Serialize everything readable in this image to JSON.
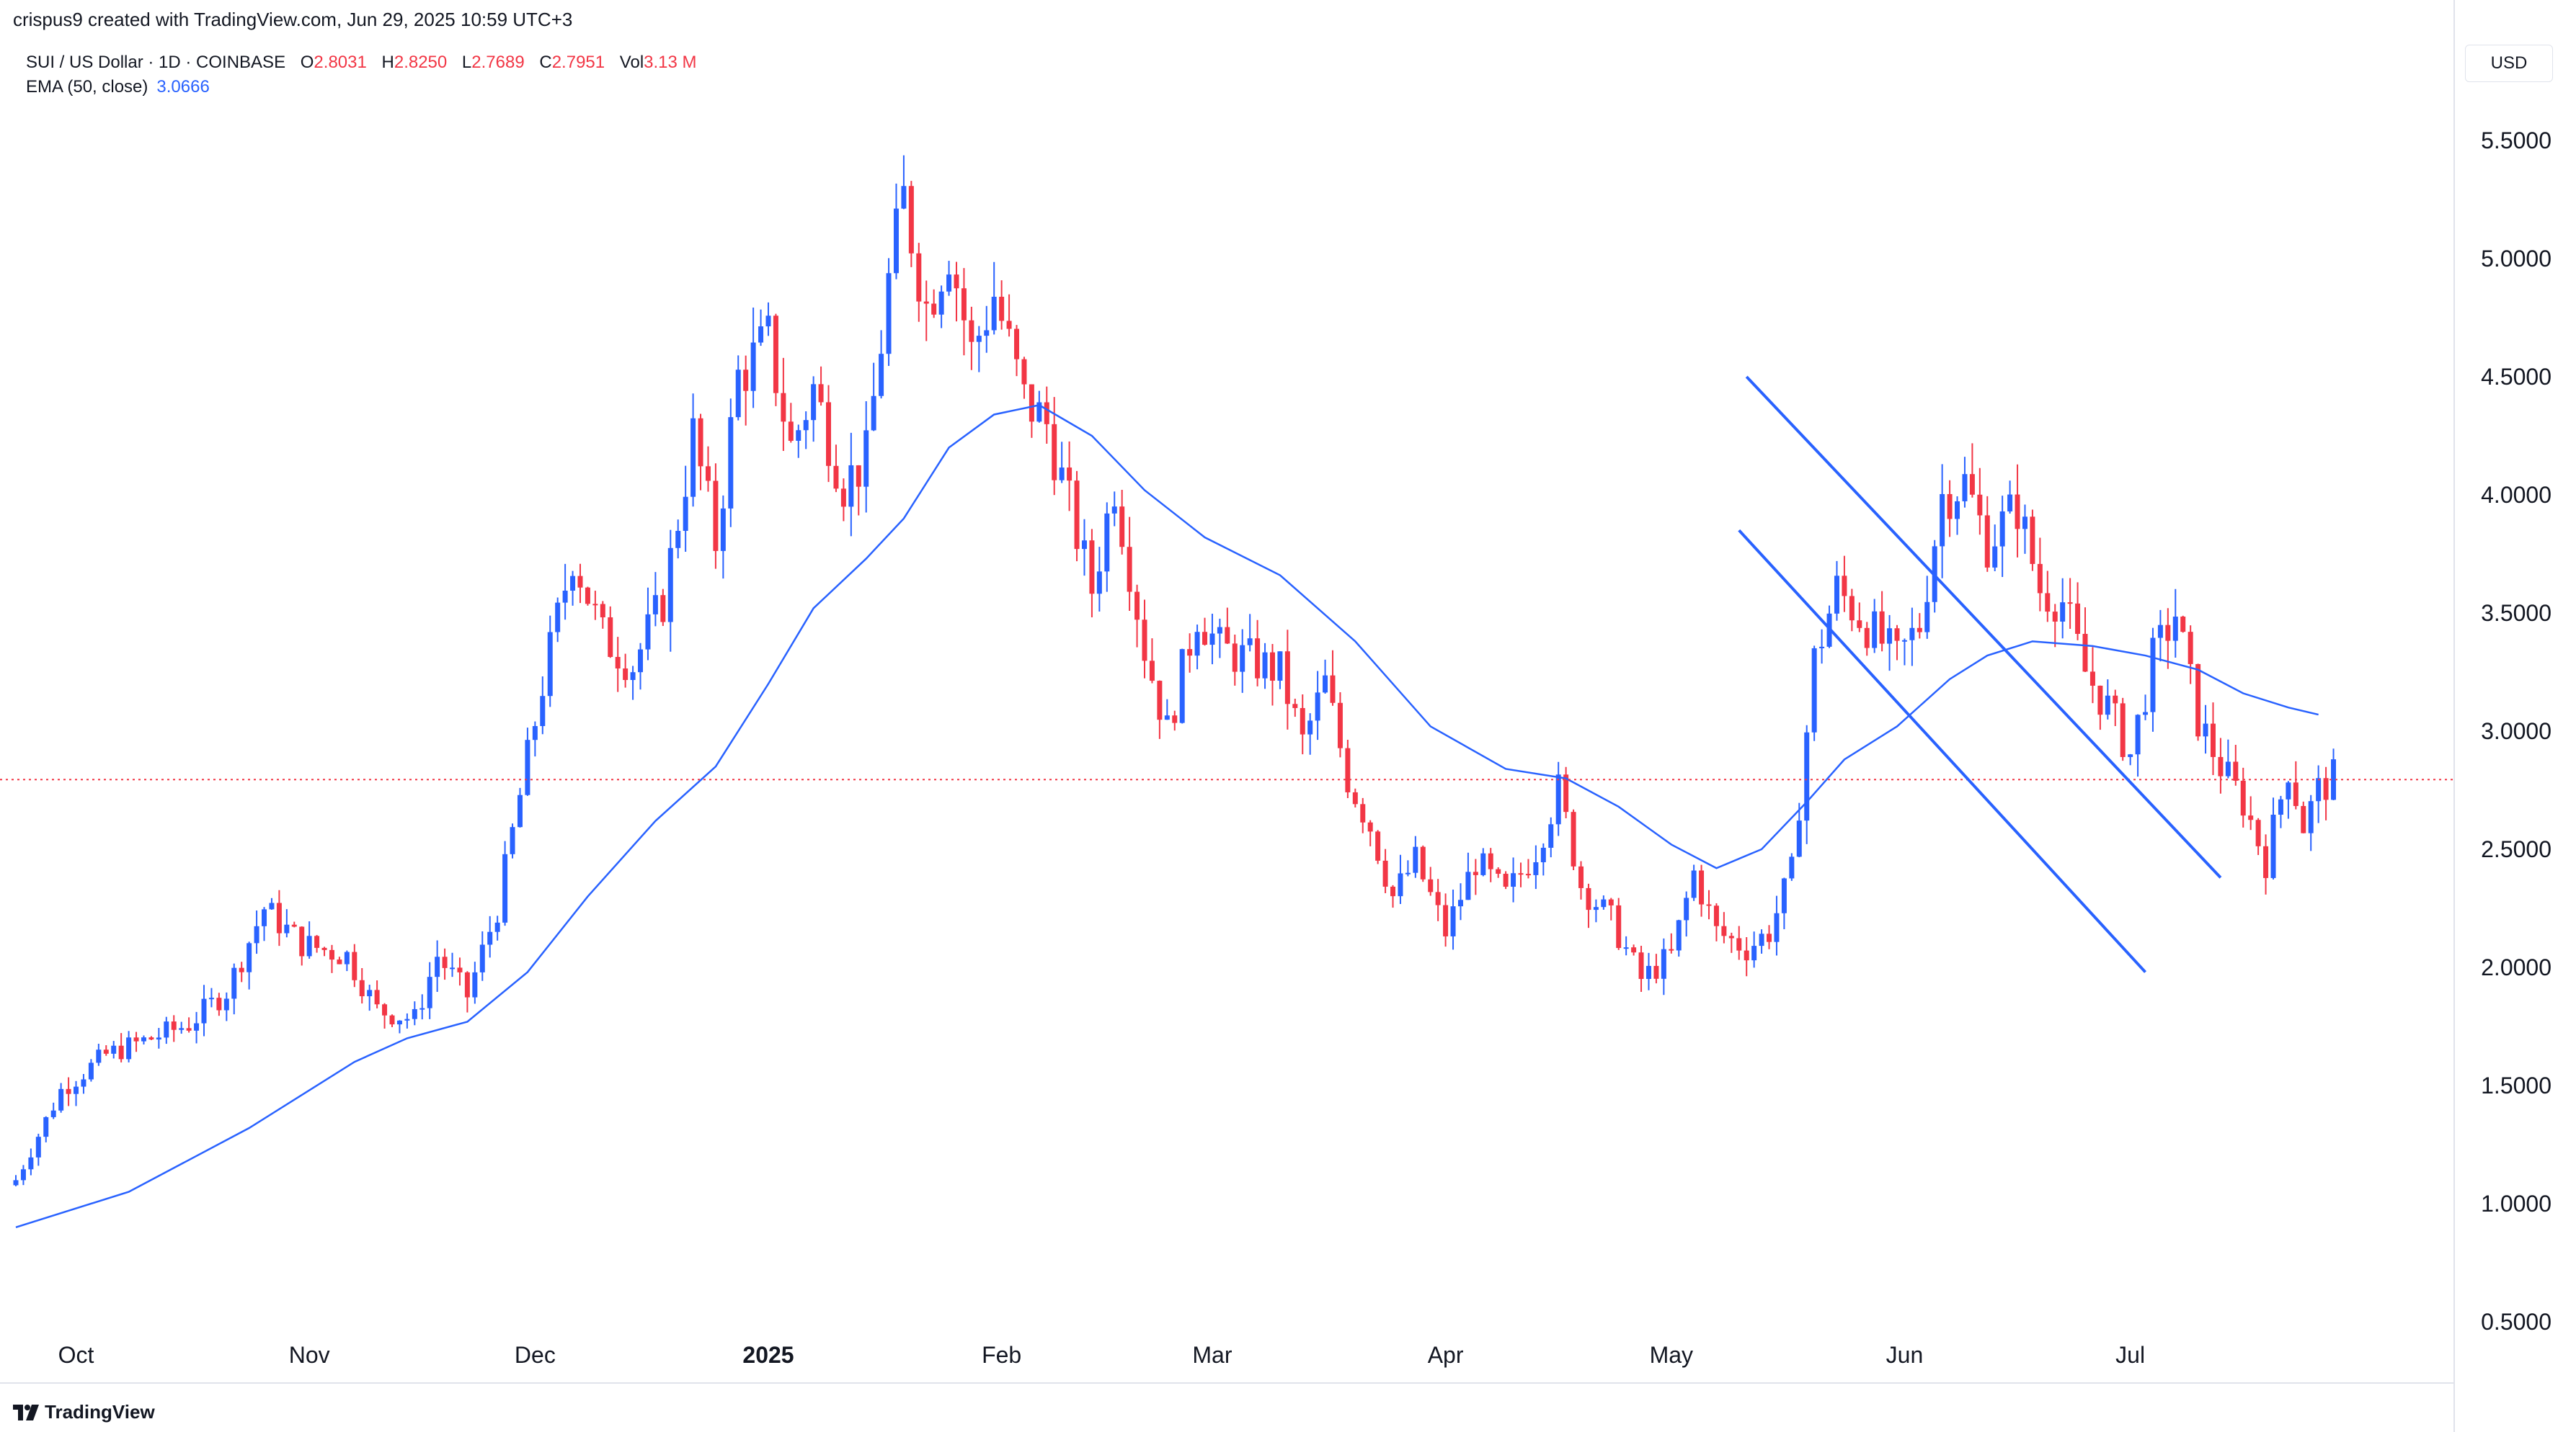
{
  "header": {
    "created_by": "crispus9 created with TradingView.com, Jun 29, 2025 10:59 UTC+3"
  },
  "legend": {
    "symbol": "SUI / US Dollar · 1D · COINBASE",
    "open_label": "O",
    "open": "2.8031",
    "high_label": "H",
    "high": "2.8250",
    "low_label": "L",
    "low": "2.7689",
    "close_label": "C",
    "close": "2.7951",
    "vol_label": "Vol",
    "vol": "3.13 M",
    "ema_label": "EMA (50, close)",
    "ema_value": "3.0666"
  },
  "currency_button": "USD",
  "footer": {
    "brand": "TradingView"
  },
  "colors": {
    "up": "#2962ff",
    "down": "#f23645",
    "ema": "#2962ff",
    "channel": "#2962ff",
    "last_price_line": "#f23645"
  },
  "chart_data": {
    "type": "candlestick",
    "title": "SUI / US Dollar · 1D · COINBASE",
    "y_axis": {
      "ticks": [
        "5.5000",
        "5.0000",
        "4.5000",
        "4.0000",
        "3.5000",
        "3.0000",
        "2.5000",
        "2.0000",
        "1.5000",
        "1.0000",
        "0.5000"
      ],
      "range": [
        0.45,
        5.85
      ]
    },
    "x_axis": {
      "labels": [
        "Oct",
        "Nov",
        "Dec",
        "2025",
        "Feb",
        "Mar",
        "Apr",
        "May",
        "Jun",
        "Jul"
      ],
      "bold": "2025"
    },
    "last_price": 2.7951,
    "ema50_points": [
      [
        0,
        0.9
      ],
      [
        15,
        1.05
      ],
      [
        31,
        1.32
      ],
      [
        45,
        1.6
      ],
      [
        52,
        1.7
      ],
      [
        60,
        1.77
      ],
      [
        68,
        1.98
      ],
      [
        76,
        2.3
      ],
      [
        85,
        2.62
      ],
      [
        93,
        2.85
      ],
      [
        100,
        3.2
      ],
      [
        106,
        3.52
      ],
      [
        113,
        3.73
      ],
      [
        118,
        3.9
      ],
      [
        124,
        4.2
      ],
      [
        130,
        4.34
      ],
      [
        136,
        4.38
      ],
      [
        143,
        4.25
      ],
      [
        150,
        4.02
      ],
      [
        158,
        3.82
      ],
      [
        168,
        3.66
      ],
      [
        178,
        3.38
      ],
      [
        188,
        3.02
      ],
      [
        198,
        2.84
      ],
      [
        206,
        2.8
      ],
      [
        213,
        2.68
      ],
      [
        220,
        2.52
      ],
      [
        226,
        2.42
      ],
      [
        232,
        2.5
      ],
      [
        238,
        2.7
      ],
      [
        243,
        2.88
      ],
      [
        250,
        3.02
      ],
      [
        257,
        3.22
      ],
      [
        262,
        3.32
      ],
      [
        268,
        3.38
      ],
      [
        276,
        3.36
      ],
      [
        283,
        3.32
      ],
      [
        290,
        3.26
      ],
      [
        296,
        3.16
      ],
      [
        302,
        3.1
      ],
      [
        306,
        3.07
      ]
    ],
    "candle_anchors": [
      [
        0,
        1.1
      ],
      [
        6,
        1.48
      ],
      [
        12,
        1.63
      ],
      [
        18,
        1.7
      ],
      [
        23,
        1.76
      ],
      [
        28,
        1.9
      ],
      [
        33,
        2.25
      ],
      [
        38,
        2.1
      ],
      [
        44,
        2.05
      ],
      [
        48,
        1.82
      ],
      [
        53,
        1.78
      ],
      [
        56,
        2.05
      ],
      [
        60,
        1.88
      ],
      [
        64,
        2.25
      ],
      [
        70,
        3.2
      ],
      [
        74,
        3.75
      ],
      [
        78,
        3.4
      ],
      [
        82,
        3.28
      ],
      [
        86,
        3.55
      ],
      [
        90,
        4.25
      ],
      [
        93,
        3.8
      ],
      [
        96,
        4.5
      ],
      [
        100,
        4.65
      ],
      [
        103,
        4.2
      ],
      [
        106,
        4.45
      ],
      [
        110,
        4.05
      ],
      [
        113,
        4.15
      ],
      [
        116,
        4.9
      ],
      [
        118,
        5.25
      ],
      [
        121,
        4.8
      ],
      [
        124,
        5.05
      ],
      [
        127,
        4.6
      ],
      [
        130,
        4.85
      ],
      [
        134,
        4.4
      ],
      [
        137,
        4.3
      ],
      [
        140,
        3.95
      ],
      [
        143,
        3.6
      ],
      [
        146,
        4.05
      ],
      [
        150,
        3.35
      ],
      [
        153,
        3.0
      ],
      [
        157,
        3.5
      ],
      [
        160,
        3.35
      ],
      [
        164,
        3.3
      ],
      [
        168,
        3.25
      ],
      [
        171,
        2.95
      ],
      [
        174,
        3.2
      ],
      [
        177,
        2.8
      ],
      [
        180,
        2.6
      ],
      [
        183,
        2.3
      ],
      [
        186,
        2.45
      ],
      [
        190,
        2.15
      ],
      [
        194,
        2.45
      ],
      [
        198,
        2.3
      ],
      [
        202,
        2.5
      ],
      [
        205,
        2.75
      ],
      [
        208,
        2.35
      ],
      [
        212,
        2.2
      ],
      [
        216,
        1.95
      ],
      [
        220,
        2.05
      ],
      [
        223,
        2.4
      ],
      [
        226,
        2.15
      ],
      [
        230,
        2.08
      ],
      [
        233,
        2.15
      ],
      [
        236,
        2.4
      ],
      [
        239,
        3.3
      ],
      [
        242,
        3.6
      ],
      [
        246,
        3.45
      ],
      [
        250,
        3.3
      ],
      [
        253,
        3.45
      ],
      [
        256,
        4.0
      ],
      [
        259,
        4.05
      ],
      [
        262,
        3.8
      ],
      [
        266,
        3.95
      ],
      [
        269,
        3.6
      ],
      [
        272,
        3.55
      ],
      [
        275,
        3.25
      ],
      [
        278,
        3.1
      ],
      [
        281,
        2.9
      ],
      [
        284,
        3.3
      ],
      [
        287,
        3.5
      ],
      [
        290,
        3.05
      ],
      [
        293,
        2.85
      ],
      [
        296,
        2.7
      ],
      [
        299,
        2.45
      ],
      [
        302,
        2.85
      ],
      [
        304,
        2.6
      ],
      [
        306,
        2.75
      ],
      [
        308,
        2.8
      ]
    ],
    "channel_upper": {
      "from": [
        "2025-05-11",
        4.5
      ],
      "to": [
        "2025-07-13",
        2.38
      ]
    },
    "channel_lower": {
      "from": [
        "2025-05-10",
        3.85
      ],
      "to": [
        "2025-07-03",
        1.98
      ]
    }
  }
}
